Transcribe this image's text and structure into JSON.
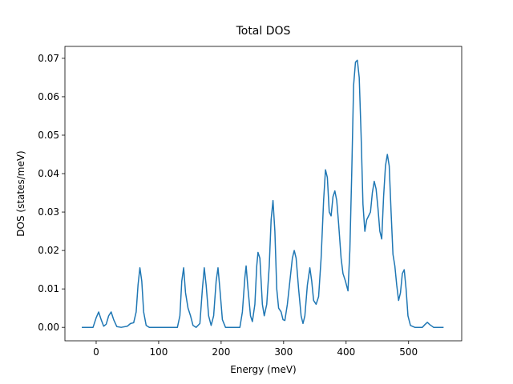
{
  "chart_data": {
    "type": "line",
    "title": "Total DOS",
    "x_label": "Energy (meV)",
    "y_label": "DOS (states/meV)",
    "xlim": [
      -50,
      585
    ],
    "ylim": [
      -0.0035,
      0.0731
    ],
    "xticks": [
      0,
      100,
      200,
      300,
      400,
      500
    ],
    "yticks": [
      {
        "value": 0,
        "label": "0.00"
      },
      0.01,
      0.02,
      0.03,
      0.04,
      0.05,
      0.06,
      0.07
    ],
    "grid": false,
    "x": [
      -23,
      -5,
      0,
      4,
      8,
      12,
      16,
      20,
      24,
      28,
      33,
      40,
      50,
      55,
      60,
      64,
      67,
      70,
      73,
      76,
      80,
      85,
      130,
      134,
      137,
      140,
      143,
      147,
      151,
      155,
      160,
      166,
      170,
      173,
      176,
      180,
      184,
      188,
      192,
      195,
      198,
      202,
      207,
      230,
      234,
      238,
      240,
      243,
      247,
      250,
      254,
      257,
      259,
      262,
      266,
      269,
      273,
      277,
      280,
      283,
      286,
      289,
      292,
      296,
      299,
      302,
      306,
      310,
      314,
      317,
      320,
      324,
      328,
      331,
      334,
      338,
      342,
      345,
      348,
      352,
      356,
      360,
      364,
      367,
      370,
      373,
      376,
      379,
      382,
      385,
      388,
      392,
      395,
      399,
      403,
      406,
      409,
      412,
      415,
      418,
      421,
      424,
      427,
      430,
      433,
      436,
      439,
      442,
      445,
      448,
      451,
      454,
      457,
      460,
      463,
      466,
      469,
      472,
      475,
      478,
      481,
      484,
      487,
      490,
      493,
      496,
      499,
      503,
      510,
      522,
      526,
      530,
      534,
      540,
      556
    ],
    "series": [
      {
        "name": "Total DOS",
        "color": "#1f77b4",
        "values": [
          0,
          0,
          0.0025,
          0.004,
          0.002,
          0.0003,
          0.0008,
          0.003,
          0.004,
          0.002,
          0.0002,
          0,
          0.0003,
          0.001,
          0.0012,
          0.004,
          0.011,
          0.0155,
          0.012,
          0.004,
          0.0005,
          0,
          0,
          0.003,
          0.012,
          0.0155,
          0.009,
          0.005,
          0.003,
          0.0005,
          0,
          0.001,
          0.01,
          0.0155,
          0.011,
          0.003,
          0.0005,
          0.003,
          0.012,
          0.0155,
          0.01,
          0.002,
          0,
          0,
          0.004,
          0.013,
          0.016,
          0.01,
          0.003,
          0.0015,
          0.006,
          0.016,
          0.0195,
          0.018,
          0.006,
          0.003,
          0.006,
          0.016,
          0.028,
          0.033,
          0.025,
          0.01,
          0.005,
          0.004,
          0.002,
          0.0018,
          0.006,
          0.012,
          0.018,
          0.02,
          0.018,
          0.01,
          0.003,
          0.001,
          0.003,
          0.011,
          0.0155,
          0.012,
          0.007,
          0.006,
          0.008,
          0.018,
          0.033,
          0.041,
          0.039,
          0.03,
          0.029,
          0.034,
          0.0355,
          0.033,
          0.027,
          0.018,
          0.014,
          0.012,
          0.0095,
          0.02,
          0.04,
          0.063,
          0.069,
          0.0695,
          0.065,
          0.05,
          0.032,
          0.025,
          0.028,
          0.029,
          0.03,
          0.035,
          0.038,
          0.036,
          0.031,
          0.025,
          0.023,
          0.034,
          0.042,
          0.045,
          0.042,
          0.03,
          0.019,
          0.016,
          0.011,
          0.007,
          0.009,
          0.014,
          0.015,
          0.01,
          0.003,
          0.0005,
          0,
          0,
          0.0007,
          0.0013,
          0.0007,
          0,
          0
        ]
      }
    ]
  }
}
